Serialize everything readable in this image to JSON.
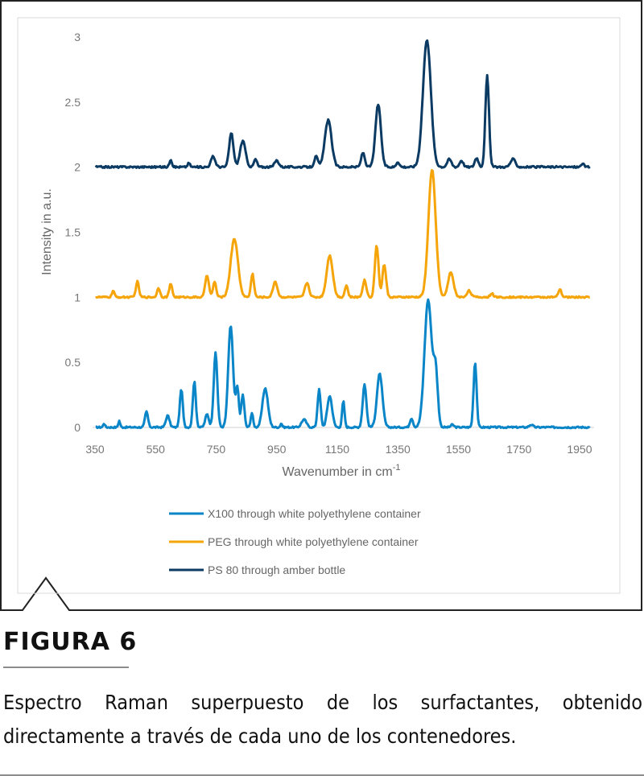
{
  "chart_data": {
    "type": "line",
    "xlabel": "Wavenumber in cm",
    "xlabel_superscript": "-1",
    "ylabel": "Intensity in a.u.",
    "xlim": [
      350,
      1990
    ],
    "ylim": [
      0,
      3
    ],
    "xticks": [
      350,
      550,
      750,
      950,
      1150,
      1350,
      1550,
      1750,
      1950
    ],
    "yticks": [
      0,
      0.5,
      1,
      1.5,
      2,
      2.5,
      3
    ],
    "ytick_labels": [
      "0",
      "0.5",
      "1",
      "1.5",
      "2",
      "2.5",
      "3"
    ],
    "grid": false,
    "legend_position": "bottom",
    "series": [
      {
        "name": "X100 through white polyethylene container",
        "color": "#0a86c8",
        "baseline": 0,
        "noise": 0.012,
        "peaks": [
          [
            380,
            0.03,
            3
          ],
          [
            430,
            0.05,
            3
          ],
          [
            520,
            0.12,
            5
          ],
          [
            590,
            0.09,
            6
          ],
          [
            635,
            0.29,
            5
          ],
          [
            678,
            0.35,
            5
          ],
          [
            720,
            0.1,
            6
          ],
          [
            748,
            0.57,
            6
          ],
          [
            798,
            0.78,
            8
          ],
          [
            820,
            0.3,
            5
          ],
          [
            838,
            0.25,
            5
          ],
          [
            868,
            0.11,
            4
          ],
          [
            912,
            0.3,
            9
          ],
          [
            965,
            0.03,
            3
          ],
          [
            1040,
            0.06,
            8
          ],
          [
            1090,
            0.29,
            5
          ],
          [
            1125,
            0.24,
            8
          ],
          [
            1170,
            0.2,
            4
          ],
          [
            1240,
            0.33,
            6
          ],
          [
            1290,
            0.41,
            9
          ],
          [
            1395,
            0.07,
            5
          ],
          [
            1450,
            0.98,
            12
          ],
          [
            1475,
            0.4,
            7
          ],
          [
            1530,
            0.02,
            5
          ],
          [
            1605,
            0.5,
            5
          ],
          [
            1790,
            0.02,
            6
          ]
        ],
        "peak_labels": [
          "",
          "",
          "",
          "",
          "",
          "",
          "",
          "",
          "",
          "",
          "",
          "",
          "",
          "",
          "",
          "",
          "",
          "",
          "",
          "",
          "",
          "",
          "",
          "",
          "",
          ""
        ]
      },
      {
        "name": "PEG through white polyethylene container",
        "color": "#f5a50a",
        "baseline": 1,
        "noise": 0.012,
        "peaks": [
          [
            410,
            0.05,
            4
          ],
          [
            490,
            0.12,
            5
          ],
          [
            560,
            0.07,
            5
          ],
          [
            600,
            0.1,
            5
          ],
          [
            720,
            0.17,
            6
          ],
          [
            745,
            0.12,
            5
          ],
          [
            810,
            0.45,
            12
          ],
          [
            870,
            0.18,
            5
          ],
          [
            945,
            0.12,
            7
          ],
          [
            1050,
            0.11,
            7
          ],
          [
            1125,
            0.32,
            10
          ],
          [
            1180,
            0.09,
            5
          ],
          [
            1240,
            0.13,
            6
          ],
          [
            1280,
            0.4,
            6
          ],
          [
            1305,
            0.25,
            6
          ],
          [
            1463,
            0.98,
            12
          ],
          [
            1525,
            0.19,
            9
          ],
          [
            1585,
            0.05,
            7
          ],
          [
            1660,
            0.03,
            5
          ],
          [
            1885,
            0.06,
            5
          ]
        ],
        "peak_labels": [
          "",
          "",
          "",
          "",
          "",
          "",
          "",
          "",
          "",
          "",
          "",
          "",
          "",
          "",
          "",
          "",
          "",
          "",
          "",
          ""
        ]
      },
      {
        "name": "PS 80 through amber bottle",
        "color": "#0b3a63",
        "baseline": 2,
        "noise": 0.014,
        "peaks": [
          [
            600,
            0.06,
            4
          ],
          [
            660,
            0.03,
            4
          ],
          [
            740,
            0.08,
            7
          ],
          [
            800,
            0.26,
            7
          ],
          [
            838,
            0.2,
            9
          ],
          [
            880,
            0.06,
            5
          ],
          [
            950,
            0.05,
            7
          ],
          [
            1080,
            0.08,
            6
          ],
          [
            1120,
            0.36,
            11
          ],
          [
            1235,
            0.11,
            6
          ],
          [
            1285,
            0.48,
            9
          ],
          [
            1350,
            0.04,
            5
          ],
          [
            1446,
            0.98,
            13
          ],
          [
            1520,
            0.06,
            7
          ],
          [
            1560,
            0.05,
            6
          ],
          [
            1610,
            0.07,
            6
          ],
          [
            1645,
            0.7,
            6
          ],
          [
            1730,
            0.06,
            8
          ],
          [
            1960,
            0.03,
            4
          ]
        ],
        "peak_labels": [
          "",
          "",
          "",
          "",
          "",
          "",
          "",
          "",
          "",
          "",
          "",
          "",
          "",
          "",
          "",
          "",
          "",
          "",
          ""
        ]
      }
    ]
  },
  "figure": {
    "label": "FIGURA 6",
    "caption": "Espectro Raman superpuesto de los surfactantes, obtenido directamente a través de cada uno de los contenedores."
  }
}
